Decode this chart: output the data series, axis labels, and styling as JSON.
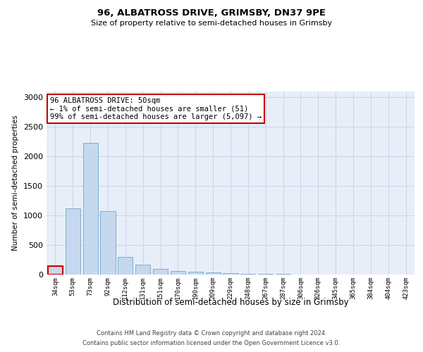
{
  "title1": "96, ALBATROSS DRIVE, GRIMSBY, DN37 9PE",
  "title2": "Size of property relative to semi-detached houses in Grimsby",
  "xlabel": "Distribution of semi-detached houses by size in Grimsby",
  "ylabel": "Number of semi-detached properties",
  "categories": [
    "34sqm",
    "53sqm",
    "73sqm",
    "92sqm",
    "112sqm",
    "131sqm",
    "151sqm",
    "170sqm",
    "190sqm",
    "209sqm",
    "229sqm",
    "248sqm",
    "267sqm",
    "287sqm",
    "306sqm",
    "326sqm",
    "345sqm",
    "365sqm",
    "384sqm",
    "404sqm",
    "423sqm"
  ],
  "values": [
    140,
    1120,
    2230,
    1070,
    295,
    165,
    95,
    60,
    50,
    35,
    25,
    15,
    8,
    8,
    5,
    4,
    3,
    3,
    2,
    2,
    2
  ],
  "bar_color": "#c5d8f0",
  "bar_edge_color": "#7baed4",
  "highlight_bar_index": 0,
  "highlight_edge_color": "#cc0000",
  "annotation_text": "96 ALBATROSS DRIVE: 50sqm\n← 1% of semi-detached houses are smaller (51)\n99% of semi-detached houses are larger (5,097) →",
  "annotation_box_edge_color": "#cc0000",
  "ylim": [
    0,
    3100
  ],
  "yticks": [
    0,
    500,
    1000,
    1500,
    2000,
    2500,
    3000
  ],
  "footer_line1": "Contains HM Land Registry data © Crown copyright and database right 2024.",
  "footer_line2": "Contains public sector information licensed under the Open Government Licence v3.0.",
  "background_color": "#ffffff",
  "plot_bg_color": "#e8eef8",
  "grid_color": "#c8d4e8"
}
